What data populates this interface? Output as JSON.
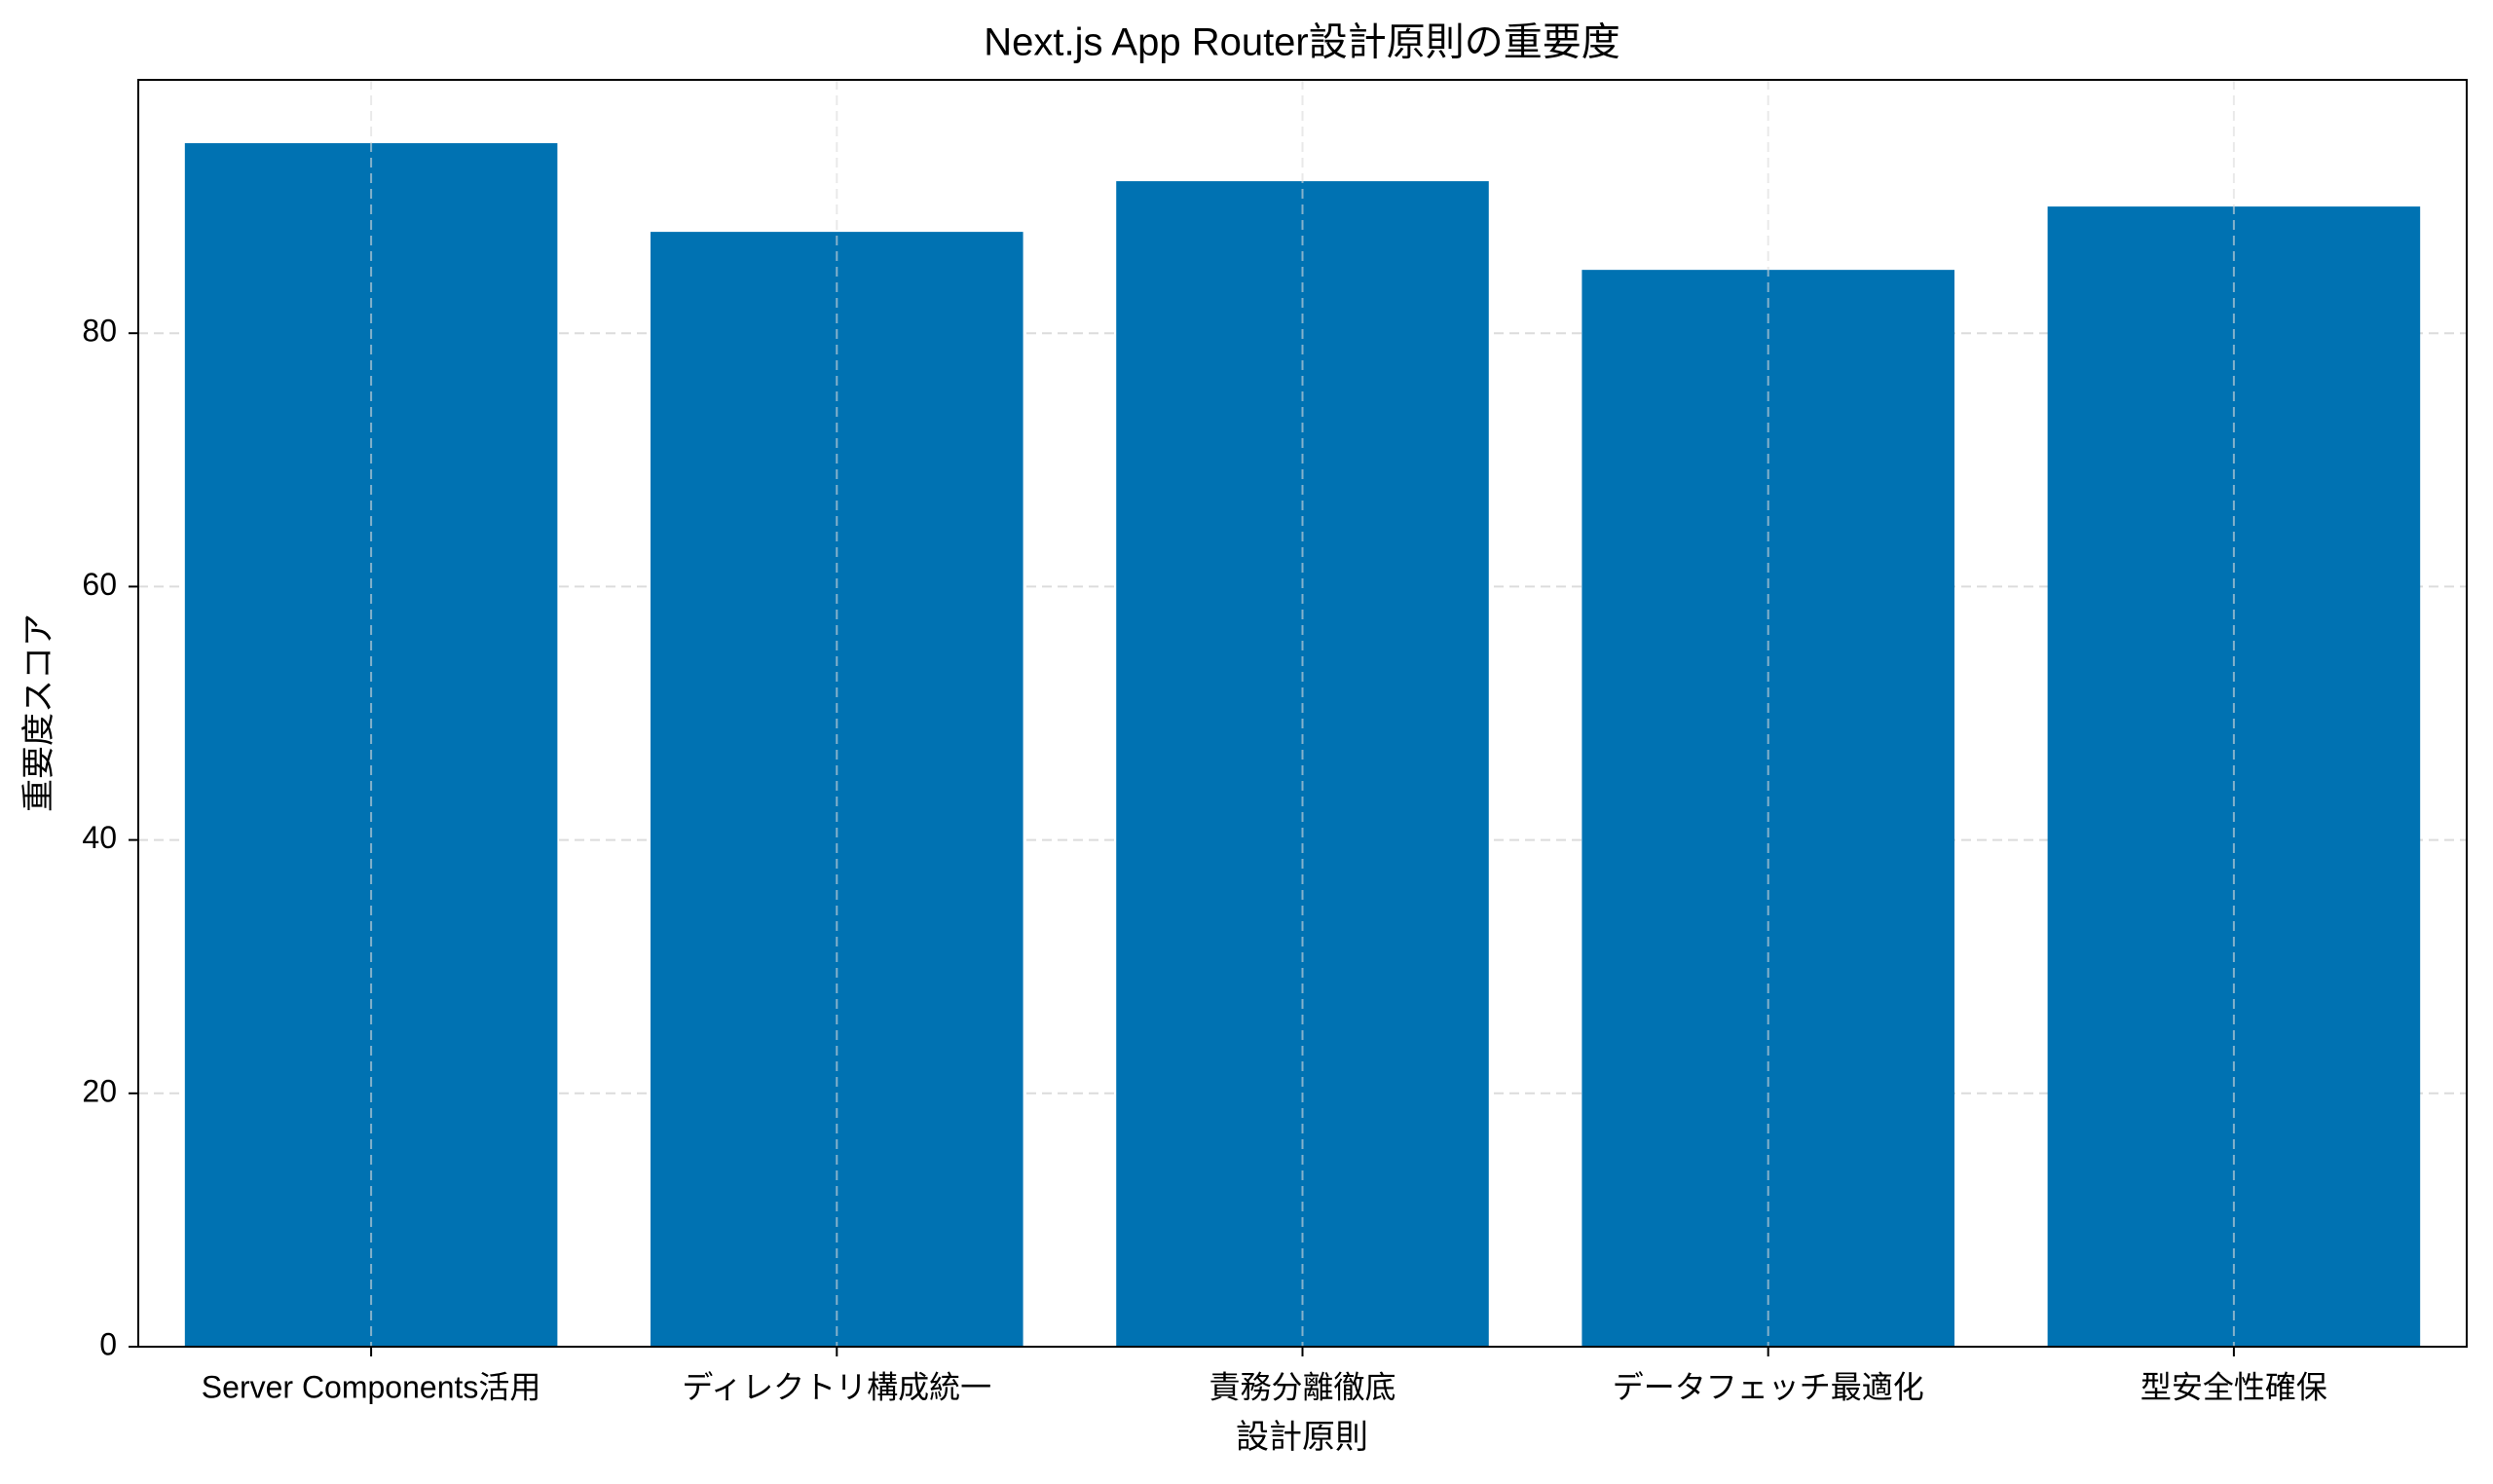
{
  "chart_data": {
    "type": "bar",
    "title": "Next.js App Router設計原則の重要度",
    "x_label": "設計原則",
    "y_label": "重要度スコア",
    "categories": [
      "Server Components活用",
      "ディレクトリ構成統一",
      "責務分離徹底",
      "データフェッチ最適化",
      "型安全性確保"
    ],
    "values": [
      95,
      88,
      92,
      85,
      90
    ],
    "color": "#0072b2",
    "ylim": [
      0,
      100
    ],
    "yticks": [
      0,
      20,
      40,
      60,
      80
    ],
    "grid": true
  }
}
